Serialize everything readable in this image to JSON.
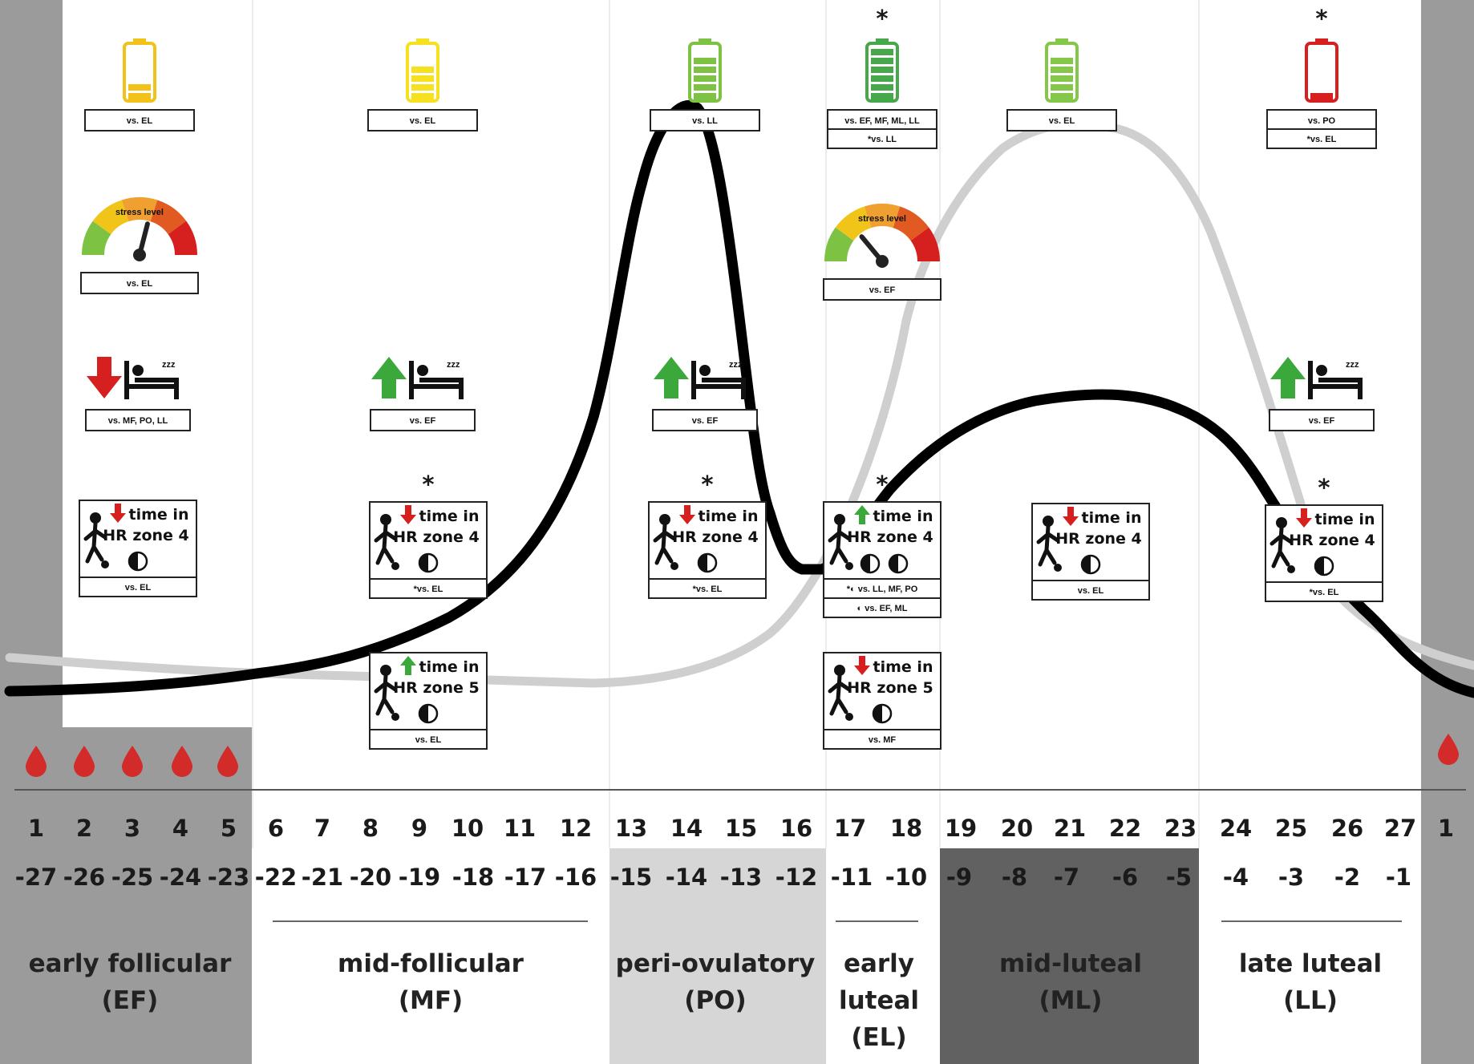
{
  "colors": {
    "menstruation_band": "#9b9b9b",
    "ovulatory_band": "#d6d6d6",
    "midluteal_band": "#616161",
    "estrogen_curve": "#000000",
    "progesterone_curve": "#cfcfcf",
    "blood": "#d32a2a",
    "arrow_up": "#3aa83a",
    "arrow_down": "#d62020"
  },
  "days_cycle": [
    "1",
    "2",
    "3",
    "4",
    "5",
    "6",
    "7",
    "8",
    "9",
    "10",
    "11",
    "12",
    "13",
    "14",
    "15",
    "16",
    "17",
    "18",
    "19",
    "20",
    "21",
    "22",
    "23",
    "24",
    "25",
    "26",
    "27",
    "1"
  ],
  "days_reverse": [
    "-27",
    "-26",
    "-25",
    "-24",
    "-23",
    "-22",
    "-21",
    "-20",
    "-19",
    "-18",
    "-17",
    "-16",
    "-15",
    "-14",
    "-13",
    "-12",
    "-11",
    "-10",
    "-9",
    "-8",
    "-7",
    "-6",
    "-5",
    "-4",
    "-3",
    "-2",
    "-1"
  ],
  "phases": [
    {
      "line1": "early follicular",
      "line2": "(EF)",
      "line3": ""
    },
    {
      "line1": "mid-follicular",
      "line2": "(MF)",
      "line3": ""
    },
    {
      "line1": "peri-ovulatory",
      "line2": "(PO)",
      "line3": ""
    },
    {
      "line1": "early",
      "line2": "luteal",
      "line3": "(EL)"
    },
    {
      "line1": "mid-luteal",
      "line2": "(ML)",
      "line3": ""
    },
    {
      "line1": "late luteal",
      "line2": "(LL)",
      "line3": ""
    }
  ],
  "battery": [
    {
      "caption": "vs. EL",
      "caption2": "",
      "level": 0.4,
      "color": "#f2c21b",
      "star": false
    },
    {
      "caption": "vs. EL",
      "caption2": "",
      "level": 0.6,
      "color": "#f5e11f",
      "star": false
    },
    {
      "caption": "vs. LL",
      "caption2": "",
      "level": 0.8,
      "color": "#7dc243",
      "star": false
    },
    {
      "caption": "vs. EF, MF, ML, LL",
      "caption2": "*vs. LL",
      "level": 1.0,
      "color": "#46a84a",
      "star": true
    },
    {
      "caption": "vs. EL",
      "caption2": "",
      "level": 0.8,
      "color": "#85c749",
      "star": false
    },
    {
      "caption": "vs. PO",
      "caption2": "*vs. EL",
      "level": 0.15,
      "color": "#d62020",
      "star": true
    }
  ],
  "stress": [
    {
      "gauge_label": "stress level",
      "caption": "vs. EL"
    },
    {
      "gauge_label": "stress level",
      "caption": "vs. EF"
    }
  ],
  "sleep": [
    {
      "direction": "down",
      "caption": "vs. MF, PO, LL"
    },
    {
      "direction": "up",
      "caption": "vs. EF"
    },
    {
      "direction": "up",
      "caption": "vs. EF"
    },
    {
      "direction": "up",
      "caption": "vs. EF"
    }
  ],
  "hr": [
    {
      "direction": "down",
      "line1": "time in",
      "line2": "HR zone 4",
      "caption": "vs. EL",
      "caption2": "",
      "star": false
    },
    {
      "direction": "down",
      "line1": "time in",
      "line2": "HR zone 4",
      "caption": "*vs. EL",
      "caption2": "",
      "star": true
    },
    {
      "direction": "down",
      "line1": "time in",
      "line2": "HR zone 4",
      "caption": "*vs. EL",
      "caption2": "",
      "star": true
    },
    {
      "direction": "up",
      "line1": "time in",
      "line2": "HR zone 4",
      "caption": "*◐ vs. LL, MF, PO",
      "caption2": "◐ vs. EF, ML",
      "star": true
    },
    {
      "direction": "down",
      "line1": "time in",
      "line2": "HR zone 4",
      "caption": "vs. EL",
      "caption2": "",
      "star": false
    },
    {
      "direction": "down",
      "line1": "time in",
      "line2": "HR zone 4",
      "caption": "*vs. EL",
      "caption2": "",
      "star": true
    },
    {
      "direction": "up",
      "line1": "time in",
      "line2": "HR zone 5",
      "caption": "vs. EL",
      "caption2": "",
      "star": false
    },
    {
      "direction": "down",
      "line1": "time in",
      "line2": "HR zone 5",
      "caption": "vs. MF",
      "caption2": "",
      "star": false
    }
  ],
  "star_symbol": "*"
}
